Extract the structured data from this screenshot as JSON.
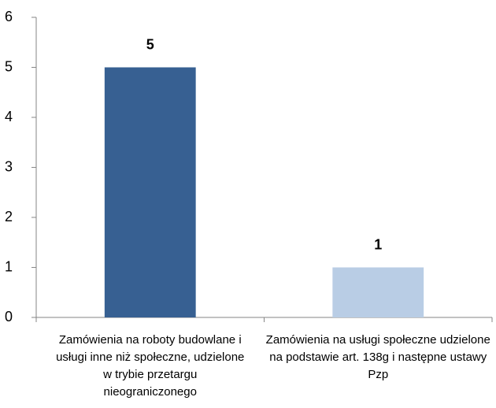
{
  "chart_data": {
    "type": "bar",
    "categories": [
      "Zamówienia na roboty budowlane i usługi inne niż społeczne, udzielone w trybie przetargu nieograniczonego",
      "Zamówienia na usługi społeczne udzielone na podstawie art. 138g i następne ustawy Pzp"
    ],
    "values": [
      5,
      1
    ],
    "colors": [
      "#376092",
      "#b9cde5"
    ],
    "ylim": [
      0,
      6
    ],
    "yticks": [
      0,
      1,
      2,
      3,
      4,
      5,
      6
    ],
    "grid": false
  }
}
